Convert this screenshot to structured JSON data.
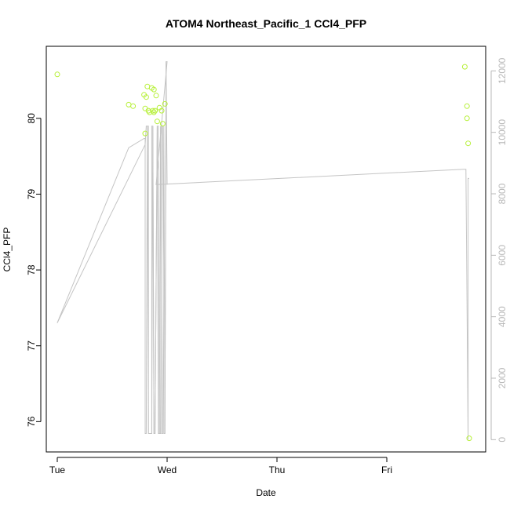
{
  "chart_data": {
    "type": "scatter",
    "title": "ATOM4 Northeast_Pacific_1 CCl4_PFP",
    "xlabel": "Date",
    "ylabel": "CCl4_PFP",
    "x_ticks": [
      "Tue",
      "Wed",
      "Thu",
      "Fri"
    ],
    "y_ticks": [
      76,
      77,
      78,
      79,
      80
    ],
    "y2_ticks": [
      0,
      2000,
      4000,
      6000,
      8000,
      10000,
      12000
    ],
    "xlim_days": [
      -0.1,
      3.9
    ],
    "ylim": [
      75.6,
      80.95
    ],
    "y2lim": [
      -400,
      12800
    ],
    "grid": false,
    "colors": {
      "points": "#b7f03a",
      "line": "#c4c4c4",
      "right_axis": "#b8b8b8"
    },
    "series": [
      {
        "kind": "points",
        "axis": "left",
        "x_days": [
          0.0,
          0.65,
          0.69,
          0.79,
          0.8,
          0.8,
          0.81,
          0.82,
          0.83,
          0.84,
          0.86,
          0.87,
          0.88,
          0.88,
          0.89,
          0.9,
          0.91,
          0.93,
          0.95,
          0.96,
          0.98,
          3.71,
          3.73,
          3.73,
          3.74,
          3.75
        ],
        "y": [
          80.58,
          80.18,
          80.16,
          80.31,
          80.13,
          79.8,
          80.28,
          80.42,
          80.1,
          80.08,
          80.4,
          80.1,
          80.08,
          80.38,
          80.1,
          80.3,
          79.96,
          80.14,
          80.1,
          79.93,
          80.19,
          80.68,
          80.16,
          80.0,
          79.67,
          75.78
        ]
      },
      {
        "kind": "line",
        "axis": "right",
        "x_days": [
          0.0,
          0.8,
          0.8,
          0.81,
          0.82,
          0.83,
          0.83,
          0.85,
          0.86,
          0.86,
          0.87,
          0.88,
          0.89,
          0.91,
          0.92,
          0.93,
          0.94,
          0.95,
          0.96,
          0.97,
          0.98,
          0.99,
          0.99,
          1.0,
          0.9,
          3.7,
          3.72,
          3.74,
          3.74,
          3.75
        ],
        "y": [
          3800,
          9600,
          9600,
          10200,
          10200,
          10200,
          200,
          200,
          200,
          10200,
          10200,
          200,
          200,
          10200,
          10200,
          200,
          200,
          10200,
          10200,
          200,
          200,
          10200,
          12300,
          12300,
          8300,
          8800,
          8800,
          0,
          8500,
          8500
        ]
      },
      {
        "kind": "line",
        "axis": "right",
        "x_days": [
          0.0,
          0.65,
          0.79,
          0.8,
          0.8,
          0.81,
          0.82,
          0.83,
          0.86,
          0.87,
          0.88,
          0.89,
          0.91,
          0.92,
          0.93,
          0.94,
          0.95,
          0.96,
          0.97,
          0.98,
          0.99,
          1.0
        ],
        "y": [
          3800,
          9500,
          9800,
          9800,
          200,
          200,
          10200,
          200,
          200,
          10200,
          200,
          200,
          10200,
          200,
          200,
          10200,
          200,
          200,
          10200,
          200,
          12300,
          8300
        ]
      }
    ]
  }
}
